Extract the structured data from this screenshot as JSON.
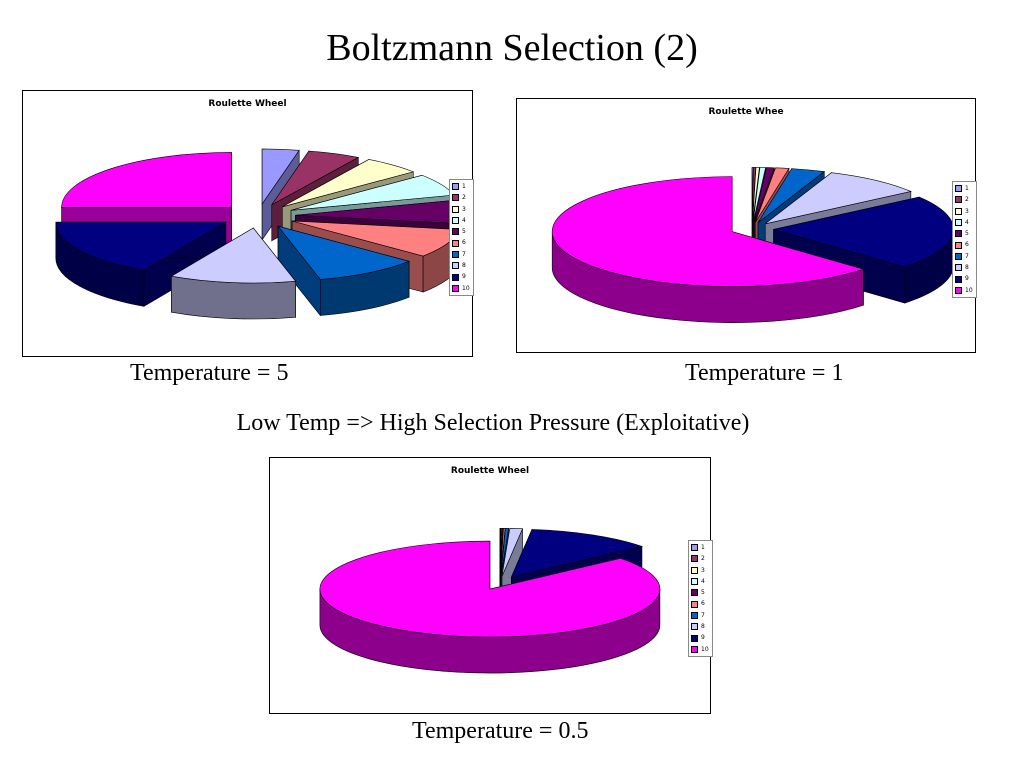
{
  "slide": {
    "title": "Boltzmann Selection (2)",
    "subtitle": "Low Temp => High Selection Pressure (Exploitative)"
  },
  "chart_data": [
    {
      "type": "pie",
      "style": "3d-exploded",
      "title": "Roulette Wheel",
      "caption": "Temperature = 5",
      "legend": "right",
      "categories": [
        "1",
        "2",
        "3",
        "4",
        "5",
        "6",
        "7",
        "8",
        "9",
        "10"
      ],
      "values": [
        3.5,
        5.0,
        5.5,
        6.5,
        7.0,
        8.5,
        10.0,
        12.0,
        17.0,
        25.0
      ],
      "colors": [
        "#9999ff",
        "#993366",
        "#ffffcc",
        "#ccffff",
        "#660066",
        "#ff8080",
        "#0066cc",
        "#ccccff",
        "#000080",
        "#ff00ff"
      ]
    },
    {
      "type": "pie",
      "style": "3d-exploded",
      "title": "Roulette Whee",
      "caption": "Temperature = 1",
      "legend": "right",
      "categories": [
        "1",
        "2",
        "3",
        "4",
        "5",
        "6",
        "7",
        "8",
        "9",
        "10"
      ],
      "values": [
        0.1,
        0.2,
        0.3,
        0.5,
        0.7,
        1.2,
        3.0,
        9.0,
        22.0,
        63.0
      ],
      "colors": [
        "#9999ff",
        "#993366",
        "#ffffcc",
        "#ccffff",
        "#660066",
        "#ff8080",
        "#0066cc",
        "#ccccff",
        "#000080",
        "#ff00ff"
      ]
    },
    {
      "type": "pie",
      "style": "3d-exploded",
      "title": "Roulette Wheel",
      "caption": "Temperature = 0.5",
      "legend": "right",
      "categories": [
        "1",
        "2",
        "3",
        "4",
        "5",
        "6",
        "7",
        "8",
        "9",
        "10"
      ],
      "values": [
        0.02,
        0.03,
        0.05,
        0.08,
        0.1,
        0.15,
        0.3,
        1.2,
        12.0,
        86.0
      ],
      "colors": [
        "#9999ff",
        "#993366",
        "#ffffcc",
        "#ccffff",
        "#660066",
        "#ff8080",
        "#0066cc",
        "#ccccff",
        "#000080",
        "#ff00ff"
      ]
    }
  ]
}
